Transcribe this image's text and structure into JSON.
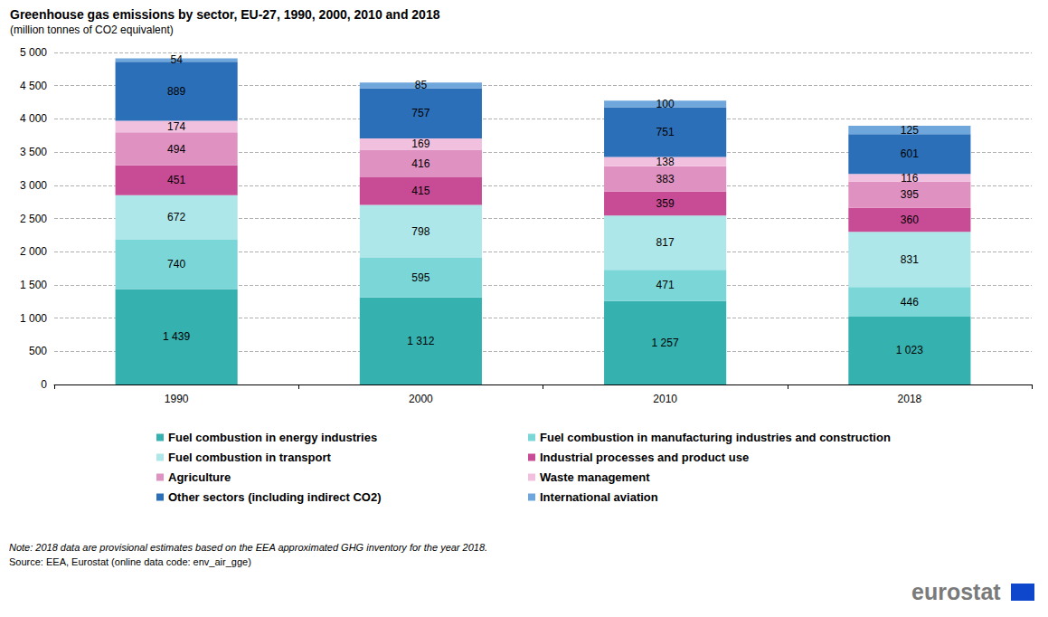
{
  "chart_data": {
    "type": "bar",
    "title": "Greenhouse gas emissions by sector, EU-27, 1990, 2000, 2010 and 2018",
    "subtitle": "(million tonnes of CO2 equivalent)",
    "annotations": [
      "Note: 2018 data are provisional estimates based on the EEA approximated GHG inventory for the year 2018.",
      "Source: EEA, Eurostat (online data code: env_air_gge)",
      "eurostat"
    ],
    "categories": [
      "1990",
      "2000",
      "2010",
      "2018"
    ],
    "stacked": true,
    "data_labels": true,
    "grid": true,
    "legend": "bottom",
    "ylim": [
      0,
      5000
    ],
    "yticks": [
      0,
      500,
      {
        "value": 1000,
        "label": "1 000"
      },
      {
        "value": 1500,
        "label": "1 500"
      },
      {
        "value": 2000,
        "label": "2 000"
      },
      {
        "value": 2500,
        "label": "2 500"
      },
      {
        "value": 3000,
        "label": "3 000"
      },
      {
        "value": 3500,
        "label": "3 500"
      },
      {
        "value": 4000,
        "label": "4 000"
      },
      {
        "value": 4500,
        "label": "4 500"
      },
      {
        "value": 5000,
        "label": "5 000"
      }
    ],
    "series": [
      {
        "name": "Fuel combustion in energy industries",
        "color": "#35b1af",
        "values": [
          1439,
          1312,
          1257,
          1023
        ],
        "value_labels": [
          "1 439",
          "1 312",
          "1 257",
          "1 023"
        ]
      },
      {
        "name": "Fuel combustion in manufacturing industries and construction",
        "color": "#7bd6d8",
        "values": [
          740,
          595,
          471,
          446
        ]
      },
      {
        "name": "Fuel combustion in transport",
        "color": "#ade7e9",
        "values": [
          672,
          798,
          817,
          831
        ]
      },
      {
        "name": "Industrial processes and product use",
        "color": "#c84b95",
        "values": [
          451,
          415,
          359,
          360
        ]
      },
      {
        "name": "Agriculture",
        "color": "#df91c1",
        "values": [
          494,
          416,
          383,
          395
        ]
      },
      {
        "name": "Waste management",
        "color": "#f2c0df",
        "values": [
          174,
          169,
          138,
          116
        ]
      },
      {
        "name": "Other sectors (including indirect CO2)",
        "color": "#2b6fb8",
        "values": [
          889,
          757,
          751,
          601
        ]
      },
      {
        "name": "International aviation",
        "color": "#6fa6dc",
        "values": [
          54,
          85,
          100,
          125
        ]
      }
    ]
  }
}
